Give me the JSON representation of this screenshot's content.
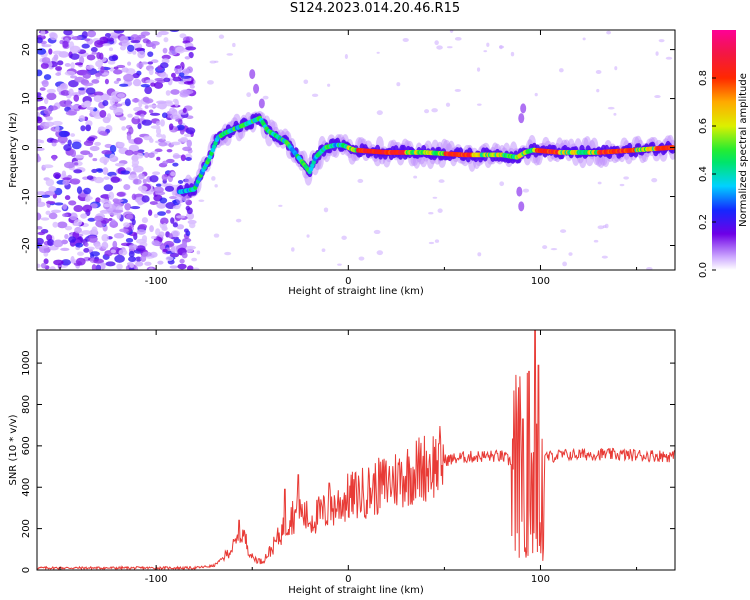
{
  "title": "S124.2023.014.20.46.R15",
  "chart_data": [
    {
      "type": "heatmap",
      "xlabel": "Height of straight line (km)",
      "ylabel": "Frequency (Hz)",
      "xlim": [
        -162,
        170
      ],
      "ylim": [
        -25,
        24
      ],
      "xticks": [
        -100,
        0,
        100
      ],
      "yticks": [
        -20,
        -10,
        0,
        10,
        20
      ],
      "colorbar": {
        "label": "Normalized spectral amplitude",
        "range": [
          0,
          1
        ],
        "ticks": [
          0.0,
          0.2,
          0.4,
          0.6,
          0.8
        ]
      },
      "ridge": {
        "description_points": [
          [
            -87,
            -9
          ],
          [
            -80,
            -8.5
          ],
          [
            -76,
            -5
          ],
          [
            -72,
            -2
          ],
          [
            -68,
            2
          ],
          [
            -64,
            3
          ],
          [
            -58,
            4
          ],
          [
            -52,
            5
          ],
          [
            -46,
            6
          ],
          [
            -42,
            3.5
          ],
          [
            -36,
            2
          ],
          [
            -32,
            1
          ],
          [
            -28,
            -1
          ],
          [
            -24,
            -3
          ],
          [
            -20,
            -5
          ],
          [
            -17,
            -2
          ],
          [
            -12,
            0
          ],
          [
            -7,
            0.5
          ],
          [
            -3,
            0.5
          ],
          [
            3,
            -0.5
          ],
          [
            20,
            -1
          ],
          [
            40,
            -1
          ],
          [
            60,
            -1.5
          ],
          [
            80,
            -1.5
          ],
          [
            88,
            -2
          ],
          [
            92,
            -1
          ],
          [
            96,
            -0.5
          ],
          [
            110,
            -1
          ],
          [
            130,
            -1
          ],
          [
            150,
            -0.5
          ],
          [
            168,
            0
          ]
        ]
      },
      "noise_region_x": [
        -162,
        -85
      ]
    },
    {
      "type": "line",
      "xlabel": "Height of straight line (km)",
      "ylabel": "SNR (10 * v/v)",
      "xlim": [
        -162,
        170
      ],
      "ylim": [
        0,
        1160
      ],
      "xticks": [
        -100,
        0,
        100
      ],
      "yticks": [
        0,
        200,
        400,
        600,
        800,
        1000
      ],
      "color": "#e83b36",
      "envelope": [
        [
          -162,
          10
        ],
        [
          -80,
          10
        ],
        [
          -70,
          20
        ],
        [
          -65,
          60
        ],
        [
          -60,
          110
        ],
        [
          -55,
          180
        ],
        [
          -50,
          60
        ],
        [
          -45,
          40
        ],
        [
          -40,
          100
        ],
        [
          -35,
          180
        ],
        [
          -30,
          260
        ],
        [
          -25,
          280
        ],
        [
          -20,
          240
        ],
        [
          -15,
          270
        ],
        [
          -10,
          290
        ],
        [
          -5,
          320
        ],
        [
          0,
          350
        ],
        [
          10,
          380
        ],
        [
          20,
          420
        ],
        [
          30,
          460
        ],
        [
          40,
          500
        ],
        [
          50,
          530
        ],
        [
          60,
          545
        ],
        [
          70,
          550
        ],
        [
          80,
          550
        ],
        [
          85,
          520
        ],
        [
          90,
          500
        ],
        [
          95,
          520
        ],
        [
          100,
          540
        ],
        [
          110,
          555
        ],
        [
          130,
          560
        ],
        [
          150,
          555
        ],
        [
          170,
          550
        ]
      ],
      "peaks": [
        [
          -57,
          240
        ],
        [
          -33,
          390
        ],
        [
          -26,
          460
        ],
        [
          -10,
          420
        ],
        [
          47,
          610
        ],
        [
          91,
          730
        ],
        [
          94,
          960
        ],
        [
          97,
          1160
        ],
        [
          99,
          990
        ]
      ]
    }
  ]
}
